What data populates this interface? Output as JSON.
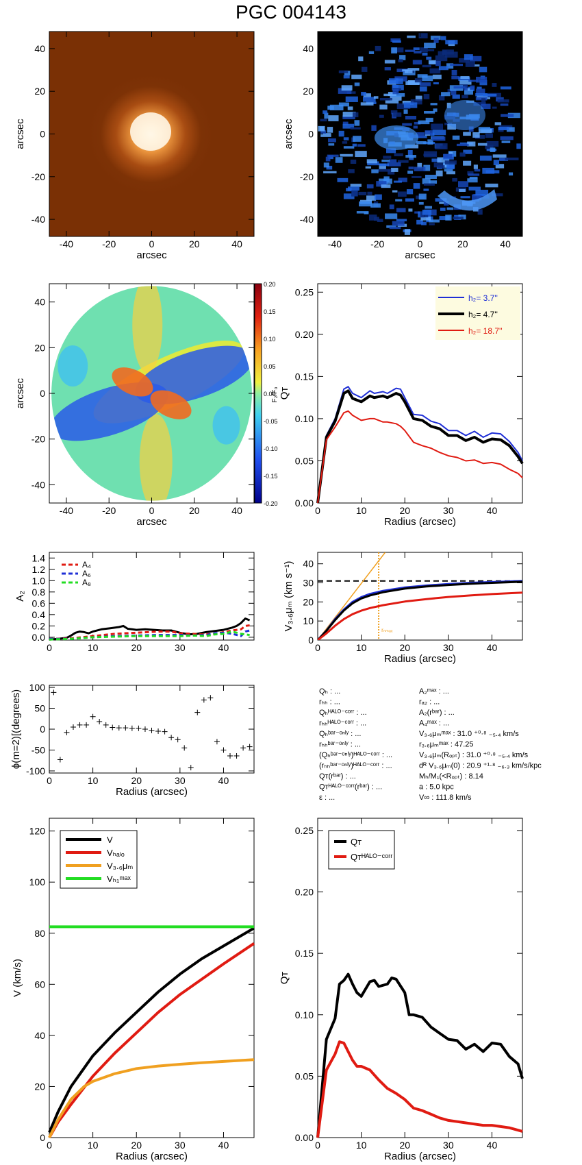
{
  "title": "PGC 004143",
  "colors": {
    "blue": "#1f2fd6",
    "black": "#000000",
    "red": "#e01b12",
    "orange": "#f0a020",
    "green": "#22dd22",
    "legend_bg": "#fdfbe0"
  },
  "panel1": {
    "xlabel": "arcsec",
    "ylabel": "arcsec",
    "xticks": [
      "-40",
      "-20",
      "0",
      "20",
      "40"
    ],
    "yticks": [
      "40",
      "20",
      "0",
      "-20",
      "-40"
    ]
  },
  "panel2": {
    "xlabel": "arcsec",
    "ylabel": "arcsec",
    "xticks": [
      "-40",
      "-20",
      "0",
      "20",
      "40"
    ],
    "yticks": [
      "40",
      "20",
      "0",
      "-20",
      "-40"
    ]
  },
  "panel3": {
    "xlabel": "arcsec",
    "ylabel": "arcsec",
    "xticks": [
      "-40",
      "-20",
      "0",
      "20",
      "40"
    ],
    "yticks": [
      "40",
      "20",
      "0",
      "-20",
      "-40"
    ],
    "colorbar_label": "F₂/F₀",
    "colorbar_ticks": [
      "0.20",
      "0.15",
      "0.10",
      "0.05",
      "0.00",
      "-0.05",
      "-0.10",
      "-0.15",
      "-0.20"
    ]
  },
  "legend_hz": [
    {
      "label": "h₂=  3.7''",
      "color": "#1f2fd6"
    },
    {
      "label": "h₂=  4.7''",
      "color": "#000000"
    },
    {
      "label": "h₂= 18.7''",
      "color": "#e01b12"
    }
  ],
  "legend_A": [
    {
      "label": "A₄",
      "color": "#e01b12"
    },
    {
      "label": "A₆",
      "color": "#1f2fd6"
    },
    {
      "label": "A₈",
      "color": "#22dd22"
    }
  ],
  "vc_annotation": "rₙₘₐₓ",
  "table_left": [
    "Qₕ : ...",
    "rₕₕ : ...",
    "Qₕᴴᴬᴸᴼ⁻ᶜᵒʳʳ : ...",
    "rₕₕᴴᴬᴸᴼ⁻ᶜᵒʳʳ : ...",
    "Qₕᵇᵃʳ⁻ᵒⁿˡʸ : ...",
    "rₕₕᵇᵃʳ⁻ᵒⁿˡʸ : ...",
    "(Qₕᵇᵃʳ⁻ᵒⁿˡʸ)ᴴᴬᴸᴼ⁻ᶜᵒʳʳ : ...",
    "(rₕₕᵇᵃʳ⁻ᵒⁿˡʸ)ᴴᴬᴸᴼ⁻ᶜᵒʳʳ : ...",
    "Qᴛ(rᵇᵃʳ) : ...",
    "Qᴛᴴᴬᴸᴼ⁻ᶜᵒʳʳ(rᵇᵃʳ) : ...",
    "ε : ..."
  ],
  "table_right": [
    "A₂ᵐᵃˣ : ...",
    "rₐ₂ : ...",
    "A₂(rᵇᵃʳ) : ...",
    "A₄ᵐᵃˣ : ...",
    "V₃.₆μₘᵐᵃˣ :  31.0 ⁺⁰·⁸ ₋₅.₄ km/s",
    "r₃.₆μₘᵐᵃˣ :  47.25",
    "V₃.₆μₘ(Rₒₚₜ) :  31.0 ⁺⁰·⁸ ₋₅.₄ km/s",
    "dᴿ V₃.₆μₘ(0) :  20.9 ⁺¹·⁸ ₋₆.₃ km/s/kpc",
    "Mₕ/M₁(<Rₒₚₜ) :  8.14",
    "a :   5.0 kpc",
    "V∞ :  111.8 km/s"
  ],
  "chart_data": [
    {
      "type": "heatmap",
      "title": "",
      "xlabel": "arcsec",
      "ylabel": "arcsec",
      "xlim": [
        -48,
        48
      ],
      "ylim": [
        -48,
        48
      ],
      "description_colormap": "orange"
    },
    {
      "type": "heatmap",
      "title": "",
      "xlabel": "arcsec",
      "ylabel": "arcsec",
      "xlim": [
        -48,
        48
      ],
      "ylim": [
        -48,
        48
      ],
      "description_colormap": "blue"
    },
    {
      "type": "heatmap",
      "title": "",
      "xlabel": "arcsec",
      "ylabel": "arcsec",
      "xlim": [
        -48,
        48
      ],
      "ylim": [
        -48,
        48
      ],
      "zlim": [
        -0.2,
        0.2
      ]
    },
    {
      "type": "line",
      "xlabel": "Radius (arcsec)",
      "ylabel": "Qᴛ",
      "xlim": [
        0,
        47
      ],
      "ylim": [
        0,
        0.26
      ],
      "xticks": [
        0,
        10,
        20,
        30,
        40
      ],
      "yticks": [
        0,
        0.05,
        0.1,
        0.15,
        0.2,
        0.25
      ],
      "series": [
        {
          "name": "h₂=  3.7''",
          "color": "#1f2fd6",
          "x": [
            0,
            2,
            4,
            6,
            7,
            8,
            10,
            12,
            13,
            15,
            16,
            18,
            19,
            20,
            22,
            24,
            26,
            28,
            30,
            32,
            34,
            36,
            38,
            40,
            42,
            44,
            46,
            47
          ],
          "y": [
            0,
            0.08,
            0.1,
            0.135,
            0.138,
            0.13,
            0.125,
            0.133,
            0.13,
            0.132,
            0.13,
            0.136,
            0.135,
            0.125,
            0.105,
            0.104,
            0.097,
            0.094,
            0.086,
            0.086,
            0.08,
            0.085,
            0.078,
            0.083,
            0.082,
            0.073,
            0.06,
            0.05
          ]
        },
        {
          "name": "h₂=  4.7''",
          "color": "#000000",
          "x": [
            0,
            2,
            4,
            6,
            7,
            8,
            10,
            12,
            13,
            15,
            16,
            18,
            19,
            20,
            22,
            24,
            26,
            28,
            30,
            32,
            34,
            36,
            38,
            40,
            42,
            44,
            46,
            47
          ],
          "y": [
            0,
            0.078,
            0.097,
            0.13,
            0.133,
            0.124,
            0.12,
            0.127,
            0.125,
            0.127,
            0.125,
            0.13,
            0.128,
            0.12,
            0.1,
            0.098,
            0.091,
            0.088,
            0.08,
            0.08,
            0.074,
            0.078,
            0.072,
            0.076,
            0.075,
            0.068,
            0.055,
            0.047
          ]
        },
        {
          "name": "h₂= 18.7''",
          "color": "#e01b12",
          "x": [
            0,
            2,
            4,
            6,
            7,
            8,
            10,
            12,
            13,
            15,
            16,
            18,
            19,
            20,
            22,
            24,
            26,
            28,
            30,
            32,
            34,
            36,
            38,
            40,
            42,
            44,
            46,
            47
          ],
          "y": [
            0,
            0.075,
            0.09,
            0.107,
            0.109,
            0.104,
            0.098,
            0.1,
            0.1,
            0.096,
            0.096,
            0.094,
            0.091,
            0.086,
            0.072,
            0.068,
            0.065,
            0.06,
            0.056,
            0.054,
            0.05,
            0.051,
            0.047,
            0.048,
            0.046,
            0.04,
            0.035,
            0.03
          ]
        }
      ]
    },
    {
      "type": "line",
      "xlabel": "",
      "ylabel": "A₂",
      "xlim": [
        0,
        47
      ],
      "ylim": [
        -0.05,
        1.5
      ],
      "xticks": [
        0,
        10,
        20,
        30,
        40
      ],
      "yticks": [
        0,
        0.2,
        0.4,
        0.6,
        0.8,
        1.0,
        1.2,
        1.4
      ],
      "series": [
        {
          "name": "A₂",
          "color": "#000000",
          "x": [
            0,
            2,
            4,
            5,
            6,
            7,
            8,
            9,
            10,
            12,
            14,
            16,
            17,
            18,
            19,
            20,
            22,
            24,
            26,
            28,
            30,
            32,
            34,
            36,
            38,
            40,
            42,
            43,
            44,
            45,
            46
          ],
          "y": [
            -0.04,
            -0.03,
            -0.01,
            0.03,
            0.08,
            0.1,
            0.09,
            0.07,
            0.1,
            0.14,
            0.16,
            0.18,
            0.2,
            0.15,
            0.14,
            0.13,
            0.14,
            0.13,
            0.12,
            0.12,
            0.08,
            0.05,
            0.06,
            0.09,
            0.11,
            0.13,
            0.17,
            0.2,
            0.25,
            0.33,
            0.3
          ]
        },
        {
          "name": "A₄",
          "color": "#e01b12",
          "x": [
            0,
            5,
            10,
            15,
            20,
            25,
            28,
            30,
            33,
            35,
            38,
            40,
            42,
            44,
            45,
            46
          ],
          "y": [
            -0.03,
            -0.02,
            0.02,
            0.06,
            0.08,
            0.1,
            0.1,
            0.07,
            0.06,
            0.05,
            0.06,
            0.09,
            0.12,
            0.14,
            0.2,
            0.21
          ]
        },
        {
          "name": "A₆",
          "color": "#1f2fd6",
          "x": [
            0,
            5,
            10,
            15,
            20,
            25,
            30,
            33,
            36,
            38,
            40,
            42,
            44,
            45,
            46
          ],
          "y": [
            -0.03,
            -0.03,
            0.0,
            0.02,
            0.03,
            0.04,
            0.04,
            0.03,
            0.04,
            0.07,
            0.08,
            0.06,
            0.02,
            0.1,
            0.12
          ]
        },
        {
          "name": "A₈",
          "color": "#22dd22",
          "x": [
            0,
            5,
            10,
            15,
            20,
            25,
            30,
            33,
            36,
            38,
            40,
            42,
            44,
            46
          ],
          "y": [
            -0.04,
            -0.03,
            0.0,
            0.01,
            0.02,
            0.02,
            0.02,
            0.03,
            0.02,
            0.05,
            0.06,
            0.1,
            0.06,
            0.04
          ]
        }
      ]
    },
    {
      "type": "line",
      "xlabel": "Radius (arcsec)",
      "ylabel": "V₃.₆μₘ (km s⁻¹)",
      "xlim": [
        0,
        47
      ],
      "ylim": [
        0,
        46
      ],
      "xticks": [
        0,
        10,
        20,
        30,
        40
      ],
      "yticks": [
        0,
        10,
        20,
        30,
        40
      ],
      "hline": 31.0,
      "vline": 14.0,
      "series": [
        {
          "name": "orange",
          "color": "#f0a020",
          "x": [
            0,
            15.5
          ],
          "y": [
            0,
            46
          ]
        },
        {
          "name": "blue",
          "color": "#1f2fd6",
          "x": [
            0,
            2,
            4,
            6,
            8,
            10,
            12,
            15,
            20,
            25,
            30,
            35,
            40,
            47
          ],
          "y": [
            0,
            5,
            11,
            16,
            20,
            22.5,
            24.2,
            25.8,
            27.6,
            28.6,
            29.4,
            30.0,
            30.4,
            31.0
          ]
        },
        {
          "name": "black",
          "color": "#000000",
          "x": [
            0,
            2,
            4,
            6,
            8,
            10,
            12,
            15,
            20,
            25,
            30,
            35,
            40,
            47
          ],
          "y": [
            0,
            4.8,
            10.5,
            15.5,
            19.3,
            21.8,
            23.4,
            25.1,
            27.0,
            28.1,
            28.9,
            29.5,
            30.0,
            30.6
          ]
        },
        {
          "name": "red",
          "color": "#e01b12",
          "x": [
            0,
            2,
            4,
            6,
            8,
            10,
            12,
            15,
            20,
            25,
            30,
            35,
            40,
            47
          ],
          "y": [
            0,
            3.5,
            7.5,
            11,
            13.6,
            15.4,
            16.8,
            18.3,
            20.2,
            21.5,
            22.6,
            23.4,
            24.1,
            24.9
          ]
        }
      ]
    },
    {
      "type": "scatter",
      "xlabel": "Radius (arcsec)",
      "ylabel": "ϕ(m=2)[(degrees)",
      "xlim": [
        0,
        47
      ],
      "ylim": [
        -105,
        105
      ],
      "xticks": [
        0,
        10,
        20,
        30,
        40
      ],
      "yticks": [
        -100,
        -50,
        0,
        50,
        100
      ],
      "x": [
        1,
        2.5,
        4,
        5.5,
        7,
        8.5,
        10,
        11.5,
        13,
        14.5,
        16,
        17.5,
        19,
        20.5,
        22,
        23.5,
        25,
        26.5,
        28,
        29.5,
        31,
        32.5,
        34,
        35.5,
        37,
        38.5,
        40,
        41.5,
        43,
        44.5,
        46
      ],
      "y": [
        88,
        -73,
        -8,
        5,
        10,
        10,
        30,
        18,
        10,
        4,
        3,
        3,
        2,
        2,
        0,
        -3,
        -5,
        -6,
        -20,
        -25,
        -45,
        -92,
        40,
        70,
        75,
        -30,
        -50,
        -64,
        -64,
        -45,
        -42
      ]
    },
    {
      "type": "line",
      "xlabel": "Radius (arcsec)",
      "ylabel": "V (km/s)",
      "xlim": [
        0,
        47
      ],
      "ylim": [
        0,
        125
      ],
      "xticks": [
        0,
        10,
        20,
        30,
        40
      ],
      "yticks": [
        0,
        20,
        40,
        60,
        80,
        100,
        120
      ],
      "hline": 82.5,
      "series": [
        {
          "name": "V",
          "color": "#000000",
          "x": [
            0,
            2,
            5,
            10,
            15,
            20,
            25,
            30,
            35,
            40,
            47
          ],
          "y": [
            2,
            10,
            20,
            32,
            41,
            49,
            57,
            64,
            70,
            75,
            82
          ]
        },
        {
          "name": "Vₕₐₗₒ",
          "color": "#e01b12",
          "x": [
            0,
            2,
            5,
            10,
            15,
            20,
            25,
            30,
            35,
            40,
            47
          ],
          "y": [
            0,
            6,
            13,
            24,
            33,
            41,
            49,
            56,
            62,
            68,
            76
          ]
        },
        {
          "name": "V₃.₆μₘ",
          "color": "#f0a020",
          "x": [
            0,
            2,
            5,
            8,
            10,
            15,
            20,
            25,
            30,
            35,
            40,
            47
          ],
          "y": [
            0,
            7,
            15,
            20,
            22,
            25,
            27,
            28,
            28.7,
            29.3,
            29.8,
            30.5
          ]
        },
        {
          "name": "Vₕ₁ᵐᵃˣ",
          "color": "#22dd22",
          "x": [
            0,
            47
          ],
          "y": [
            82.5,
            82.5
          ]
        }
      ]
    },
    {
      "type": "line",
      "xlabel": "Radius (arcsec)",
      "ylabel": "Qᴛ",
      "xlim": [
        0,
        47
      ],
      "ylim": [
        0,
        0.26
      ],
      "xticks": [
        0,
        10,
        20,
        30,
        40
      ],
      "yticks": [
        0,
        0.05,
        0.1,
        0.15,
        0.2,
        0.25
      ],
      "series": [
        {
          "name": "Qᴛ",
          "color": "#000000",
          "x": [
            0,
            2,
            4,
            5,
            6,
            7,
            8,
            9,
            10,
            12,
            13,
            14,
            16,
            17,
            18,
            20,
            21,
            22,
            24,
            26,
            28,
            30,
            32,
            34,
            36,
            38,
            40,
            42,
            44,
            46,
            47
          ],
          "y": [
            0,
            0.08,
            0.097,
            0.125,
            0.128,
            0.133,
            0.125,
            0.118,
            0.115,
            0.127,
            0.128,
            0.123,
            0.125,
            0.13,
            0.129,
            0.118,
            0.1,
            0.1,
            0.098,
            0.09,
            0.085,
            0.08,
            0.079,
            0.072,
            0.076,
            0.07,
            0.077,
            0.076,
            0.066,
            0.06,
            0.048
          ]
        },
        {
          "name": "Qᴛᴴᴬᴸᴼ⁻ᶜᵒʳʳ",
          "color": "#e01b12",
          "x": [
            0,
            2,
            4,
            5,
            6,
            7,
            8,
            9,
            10,
            12,
            14,
            16,
            18,
            20,
            22,
            24,
            26,
            28,
            30,
            32,
            34,
            36,
            38,
            40,
            42,
            44,
            46,
            47
          ],
          "y": [
            0,
            0.055,
            0.068,
            0.078,
            0.077,
            0.07,
            0.063,
            0.058,
            0.058,
            0.055,
            0.047,
            0.04,
            0.036,
            0.031,
            0.024,
            0.022,
            0.019,
            0.016,
            0.014,
            0.013,
            0.012,
            0.011,
            0.01,
            0.01,
            0.009,
            0.008,
            0.006,
            0.005
          ]
        }
      ]
    }
  ]
}
